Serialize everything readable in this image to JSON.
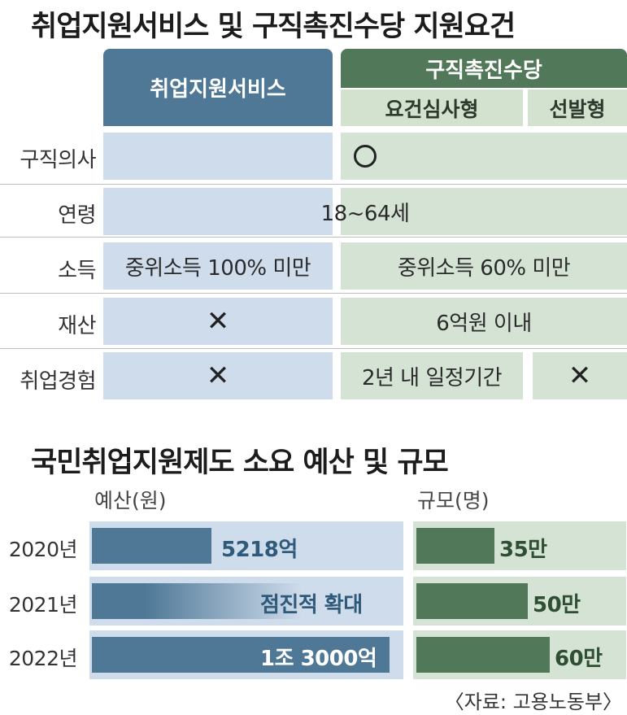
{
  "title1": "취업지원서비스 및 구직촉진수당 지원요건",
  "table": {
    "col_service": "취업지원서비스",
    "col_allowance": "구직촉진수당",
    "sub_review": "요건심사형",
    "sub_select": "선발형",
    "rows": [
      {
        "label": "구직의사",
        "all": "circle-icon"
      },
      {
        "label": "연령",
        "all": "18~64세"
      },
      {
        "label": "소득",
        "service": "중위소득 100% 미만",
        "allowance": "중위소득 60% 미만"
      },
      {
        "label": "재산",
        "service": "x-icon",
        "allowance": "6억원 이내"
      },
      {
        "label": "취업경험",
        "service": "x-icon",
        "review": "2년 내 일정기간",
        "select": "x-icon"
      }
    ]
  },
  "title2": "국민취업지원제도 소요 예산 및 규모",
  "chart_data": {
    "type": "bar",
    "categories": [
      "2020년",
      "2021년",
      "2022년"
    ],
    "series": [
      {
        "name": "예산(원)",
        "values": [
          5218,
          null,
          13000
        ],
        "labels": [
          "5218억",
          "점진적 확대",
          "1조 3000억"
        ]
      },
      {
        "name": "규모(명)",
        "values": [
          35,
          50,
          60
        ],
        "labels": [
          "35만",
          "50만",
          "60만"
        ]
      }
    ],
    "budget_axis_label": "예산(원)",
    "scale_axis_label": "규모(명)"
  },
  "colors": {
    "blue": "#4e7896",
    "green": "#52785a",
    "blue_light": "#cfdcec",
    "green_light": "#d5e3d4"
  },
  "source": "〈자료: 고용노동부〉"
}
